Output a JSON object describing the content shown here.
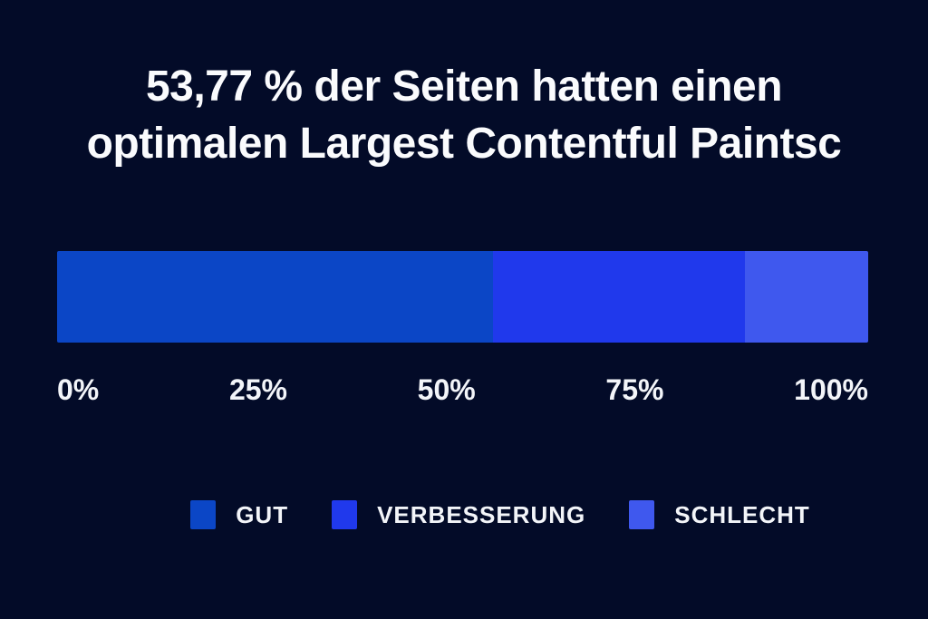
{
  "page": {
    "background_color": "#030b28",
    "text_color": "#fafbfd"
  },
  "title": {
    "line1": "53,77 % der Seiten hatten einen",
    "line2": "optimalen Largest Contentful Paintsc"
  },
  "chart_data": {
    "type": "bar",
    "variant": "horizontal-stacked-single-bar",
    "title": "53,77 % der Seiten hatten einen optimalen Largest Contentful Paintsc",
    "value_unit": "%",
    "series": [
      {
        "name": "GUT",
        "value": 53.77,
        "color": "#0b46c6"
      },
      {
        "name": "VERBESSERUNG",
        "value": 30.98,
        "color": "#2039ec"
      },
      {
        "name": "SCHLECHT",
        "value": 15.25,
        "color": "#3f58ee"
      }
    ],
    "x_axis": {
      "range": [
        0,
        100
      ],
      "ticks": [
        "0%",
        "25%",
        "50%",
        "75%",
        "100%"
      ]
    },
    "grid": false,
    "legend_position": "bottom"
  }
}
